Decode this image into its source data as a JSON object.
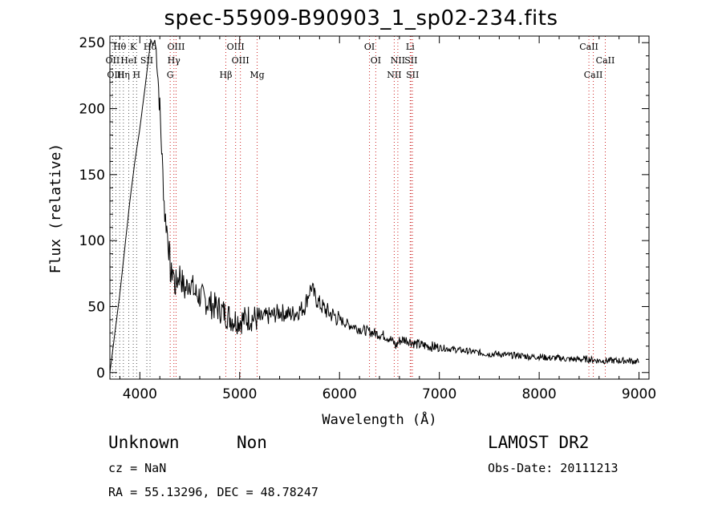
{
  "chart_data": {
    "type": "line",
    "title": "spec-55909-B90903_1_sp02-234.fits",
    "xlabel": "Wavelength (Å)",
    "ylabel": "Flux (relative)",
    "xlim": [
      3700,
      9100
    ],
    "ylim": [
      -5,
      255
    ],
    "xticks": [
      "4000",
      "5000",
      "6000",
      "7000",
      "8000",
      "9000"
    ],
    "yticks": [
      "0",
      "50",
      "100",
      "150",
      "200",
      "250"
    ],
    "series": [
      {
        "x": [
          3700,
          3750,
          3800,
          3850,
          3900,
          3950,
          4000,
          4050,
          4090,
          4110,
          4130,
          4150,
          4170,
          4200,
          4230,
          4250,
          4270,
          4290,
          4300,
          4310,
          4330,
          4350,
          4400,
          4450,
          4500,
          4550,
          4600,
          4650,
          4700,
          4750,
          4800,
          4850,
          4900,
          4950,
          5000,
          5050,
          5100,
          5150,
          5200,
          5250,
          5300,
          5350,
          5400,
          5450,
          5500,
          5550,
          5600,
          5650,
          5700,
          5720,
          5750,
          5800,
          5850,
          5900,
          5950,
          6000,
          6050,
          6100,
          6150,
          6200,
          6250,
          6300,
          6350,
          6400,
          6450,
          6500,
          6550,
          6563,
          6600,
          6650,
          6700,
          6750,
          6800,
          6900,
          7000,
          7100,
          7200,
          7300,
          7400,
          7500,
          7600,
          7700,
          7800,
          7900,
          8000,
          8100,
          8200,
          8300,
          8400,
          8500,
          8600,
          8700,
          8800,
          8900,
          9000
        ],
        "y": [
          0,
          30,
          60,
          95,
          130,
          160,
          185,
          215,
          240,
          252,
          248,
          252,
          240,
          200,
          150,
          120,
          110,
          95,
          85,
          70,
          80,
          65,
          75,
          62,
          70,
          60,
          58,
          55,
          52,
          50,
          48,
          45,
          42,
          40,
          40,
          40,
          42,
          41,
          40,
          42,
          43,
          44,
          46,
          45,
          44,
          45,
          47,
          50,
          62,
          65,
          58,
          52,
          48,
          45,
          43,
          40,
          38,
          36,
          35,
          33,
          32,
          31,
          30,
          29,
          28,
          26,
          22,
          20,
          24,
          25,
          24,
          22,
          21,
          20,
          19,
          18,
          17,
          16,
          15,
          14,
          14,
          13,
          13,
          12,
          12,
          11,
          11,
          10,
          10,
          10,
          9,
          9,
          9,
          9,
          8
        ]
      }
    ],
    "line_labels": [
      {
        "label": "Hθ",
        "x": 3798,
        "row": 1
      },
      {
        "label": "K",
        "x": 3934,
        "row": 1
      },
      {
        "label": "Hδ",
        "x": 4102,
        "row": 1
      },
      {
        "label": "OIII",
        "x": 4363,
        "row": 1
      },
      {
        "label": "OIII",
        "x": 4959,
        "row": 1
      },
      {
        "label": "OI",
        "x": 6300,
        "row": 1
      },
      {
        "label": "Li",
        "x": 6708,
        "row": 1
      },
      {
        "label": "CaII",
        "x": 8498,
        "row": 1
      },
      {
        "label": "OII",
        "x": 3727,
        "row": 2
      },
      {
        "label": "HeI",
        "x": 3889,
        "row": 2
      },
      {
        "label": "SII",
        "x": 4070,
        "row": 2
      },
      {
        "label": "Hγ",
        "x": 4341,
        "row": 2
      },
      {
        "label": "OIII",
        "x": 5007,
        "row": 2
      },
      {
        "label": "OI",
        "x": 6363,
        "row": 2
      },
      {
        "label": "NII",
        "x": 6584,
        "row": 2
      },
      {
        "label": "SII",
        "x": 6716,
        "row": 2
      },
      {
        "label": "CaII",
        "x": 8662,
        "row": 2
      },
      {
        "label": "OIII",
        "x": 3760,
        "row": 3
      },
      {
        "label": "Hη",
        "x": 3835,
        "row": 3
      },
      {
        "label": "H",
        "x": 3968,
        "row": 3
      },
      {
        "label": "G",
        "x": 4304,
        "row": 3
      },
      {
        "label": "Hβ",
        "x": 4861,
        "row": 3
      },
      {
        "label": "Mg",
        "x": 5175,
        "row": 3
      },
      {
        "label": "NII",
        "x": 6548,
        "row": 3
      },
      {
        "label": "SII",
        "x": 6731,
        "row": 3
      },
      {
        "label": "CaII",
        "x": 8542,
        "row": 3
      }
    ],
    "line_marker_colors": {
      "black": "#555555",
      "red": "#cc2222"
    }
  },
  "footer": {
    "class_label": "Unknown",
    "subclass_label": "Non",
    "survey": "LAMOST DR2",
    "cz": "cz = NaN",
    "obs_date": "Obs-Date: 20111213",
    "radec": "RA =  55.13296, DEC =  48.78247"
  }
}
